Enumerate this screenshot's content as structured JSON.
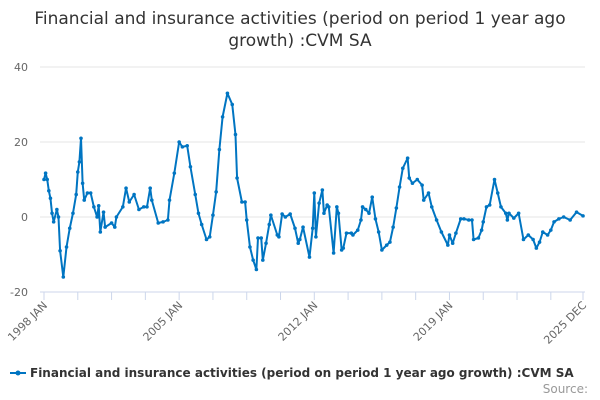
{
  "chart_data": {
    "type": "line",
    "title": "Financial and insurance activities (period on period 1 year ago growth) :CVM SA",
    "xlabel": "",
    "ylabel": "",
    "ylim": [
      -20,
      40
    ],
    "yticks": [
      "40",
      "20",
      "0",
      "-20"
    ],
    "xticks": [
      "1998 JAN",
      "2005 JAN",
      "2012 JAN",
      "2019 JAN",
      "2025 DEC"
    ],
    "grid": true,
    "legend": "bottom-left",
    "series": [
      {
        "name": "Financial and insurance activities (period on period 1 year ago growth) :CVM SA",
        "color": "#0075c2",
        "points": [
          [
            "1998-01",
            10
          ],
          [
            "1998-02",
            11.7
          ],
          [
            "1998-03",
            10
          ],
          [
            "1998-04",
            7
          ],
          [
            "1998-05",
            5
          ],
          [
            "1998-06",
            1
          ],
          [
            "1998-07",
            -1.3
          ],
          [
            "1998-09",
            2
          ],
          [
            "1998-10",
            0
          ],
          [
            "1998-11",
            -9
          ],
          [
            "1999-01",
            -16
          ],
          [
            "1999-03",
            -8
          ],
          [
            "1999-05",
            -3
          ],
          [
            "1999-07",
            1
          ],
          [
            "1999-09",
            6
          ],
          [
            "1999-10",
            12
          ],
          [
            "1999-11",
            14.7
          ],
          [
            "1999-12",
            21
          ],
          [
            "2000-01",
            9
          ],
          [
            "2000-02",
            4.5
          ],
          [
            "2000-04",
            6.4
          ],
          [
            "2000-06",
            6.4
          ],
          [
            "2000-08",
            2.7
          ],
          [
            "2000-10",
            0
          ],
          [
            "2000-11",
            3
          ],
          [
            "2000-12",
            -4
          ],
          [
            "2001-02",
            1.3
          ],
          [
            "2001-03",
            -2.7
          ],
          [
            "2001-07",
            -1.6
          ],
          [
            "2001-09",
            -2.7
          ],
          [
            "2001-10",
            0
          ],
          [
            "2002-02",
            2.7
          ],
          [
            "2002-04",
            7.7
          ],
          [
            "2002-06",
            4
          ],
          [
            "2002-09",
            6
          ],
          [
            "2002-12",
            2
          ],
          [
            "2003-03",
            2.7
          ],
          [
            "2003-05",
            2.7
          ],
          [
            "2003-07",
            7.7
          ],
          [
            "2003-08",
            4.5
          ],
          [
            "2003-12",
            -1.6
          ],
          [
            "2004-03",
            -1.3
          ],
          [
            "2004-06",
            -0.8
          ],
          [
            "2004-07",
            4.5
          ],
          [
            "2004-10",
            11.7
          ],
          [
            "2005-01",
            20
          ],
          [
            "2005-03",
            18.7
          ],
          [
            "2005-06",
            19
          ],
          [
            "2005-08",
            13.4
          ],
          [
            "2005-11",
            6
          ],
          [
            "2006-01",
            1
          ],
          [
            "2006-03",
            -2
          ],
          [
            "2006-06",
            -6
          ],
          [
            "2006-08",
            -5.3
          ],
          [
            "2006-10",
            0.5
          ],
          [
            "2006-12",
            6.7
          ],
          [
            "2007-02",
            18
          ],
          [
            "2007-04",
            26.7
          ],
          [
            "2007-07",
            33
          ],
          [
            "2007-10",
            30
          ],
          [
            "2007-12",
            22
          ],
          [
            "2008-01",
            10.4
          ],
          [
            "2008-04",
            4
          ],
          [
            "2008-06",
            4
          ],
          [
            "2008-07",
            -0.8
          ],
          [
            "2008-09",
            -8
          ],
          [
            "2008-11",
            -11.5
          ],
          [
            "2009-01",
            -14
          ],
          [
            "2009-02",
            -5.6
          ],
          [
            "2009-04",
            -5.6
          ],
          [
            "2009-05",
            -11.5
          ],
          [
            "2009-07",
            -7
          ],
          [
            "2009-09",
            -2
          ],
          [
            "2009-10",
            0.5
          ],
          [
            "2010-02",
            -4.8
          ],
          [
            "2010-03",
            -5.3
          ],
          [
            "2010-05",
            0.8
          ],
          [
            "2010-07",
            0
          ],
          [
            "2010-10",
            0.8
          ],
          [
            "2011-01",
            -3
          ],
          [
            "2011-03",
            -7
          ],
          [
            "2011-04",
            -6
          ],
          [
            "2011-06",
            -2.7
          ],
          [
            "2011-10",
            -10.7
          ],
          [
            "2011-12",
            -3
          ],
          [
            "2012-01",
            6.4
          ],
          [
            "2012-02",
            -5.3
          ],
          [
            "2012-04",
            3.7
          ],
          [
            "2012-06",
            7.2
          ],
          [
            "2012-07",
            1
          ],
          [
            "2012-09",
            3.2
          ],
          [
            "2012-10",
            2.7
          ],
          [
            "2013-01",
            -9.6
          ],
          [
            "2013-03",
            2.7
          ],
          [
            "2013-04",
            1
          ],
          [
            "2013-06",
            -8.8
          ],
          [
            "2013-07",
            -8.3
          ],
          [
            "2013-09",
            -4.3
          ],
          [
            "2013-12",
            -4.3
          ],
          [
            "2014-01",
            -4.8
          ],
          [
            "2014-04",
            -3.5
          ],
          [
            "2014-06",
            -0.8
          ],
          [
            "2014-07",
            2.7
          ],
          [
            "2014-09",
            2
          ],
          [
            "2014-11",
            1
          ],
          [
            "2015-01",
            5.3
          ],
          [
            "2015-03",
            -0.5
          ],
          [
            "2015-05",
            -4
          ],
          [
            "2015-07",
            -8.8
          ],
          [
            "2015-10",
            -7.5
          ],
          [
            "2015-12",
            -6.7
          ],
          [
            "2016-02",
            -2.7
          ],
          [
            "2016-04",
            2.4
          ],
          [
            "2016-06",
            8
          ],
          [
            "2016-08",
            13
          ],
          [
            "2016-11",
            15.7
          ],
          [
            "2016-12",
            10.4
          ],
          [
            "2017-02",
            9
          ],
          [
            "2017-05",
            10
          ],
          [
            "2017-08",
            8.5
          ],
          [
            "2017-09",
            4.5
          ],
          [
            "2017-12",
            6.4
          ],
          [
            "2018-02",
            2.7
          ],
          [
            "2018-05",
            -0.8
          ],
          [
            "2018-08",
            -4
          ],
          [
            "2018-12",
            -7.5
          ],
          [
            "2019-01",
            -4.8
          ],
          [
            "2019-03",
            -7
          ],
          [
            "2019-05",
            -4.3
          ],
          [
            "2019-08",
            -0.5
          ],
          [
            "2019-10",
            -0.5
          ],
          [
            "2020-01",
            -0.8
          ],
          [
            "2020-03",
            -0.8
          ],
          [
            "2020-04",
            -6
          ],
          [
            "2020-07",
            -5.6
          ],
          [
            "2020-09",
            -3.5
          ],
          [
            "2020-10",
            -1.3
          ],
          [
            "2020-12",
            2.7
          ],
          [
            "2021-02",
            3.2
          ],
          [
            "2021-05",
            10
          ],
          [
            "2021-07",
            6.4
          ],
          [
            "2021-09",
            2.7
          ],
          [
            "2021-12",
            1
          ],
          [
            "2022-01",
            -0.8
          ],
          [
            "2022-02",
            1
          ],
          [
            "2022-05",
            -0.3
          ],
          [
            "2022-08",
            1
          ],
          [
            "2022-11",
            -6
          ],
          [
            "2023-02",
            -4.8
          ],
          [
            "2023-05",
            -6
          ],
          [
            "2023-07",
            -8.3
          ],
          [
            "2023-09",
            -6.7
          ],
          [
            "2023-11",
            -4
          ],
          [
            "2024-02",
            -4.8
          ],
          [
            "2024-04",
            -3.5
          ],
          [
            "2024-06",
            -1.3
          ],
          [
            "2024-09",
            -0.5
          ],
          [
            "2024-12",
            0
          ],
          [
            "2025-04",
            -0.8
          ],
          [
            "2025-08",
            1.3
          ],
          [
            "2025-12",
            0.3
          ]
        ]
      }
    ]
  },
  "source_label": "Source:"
}
